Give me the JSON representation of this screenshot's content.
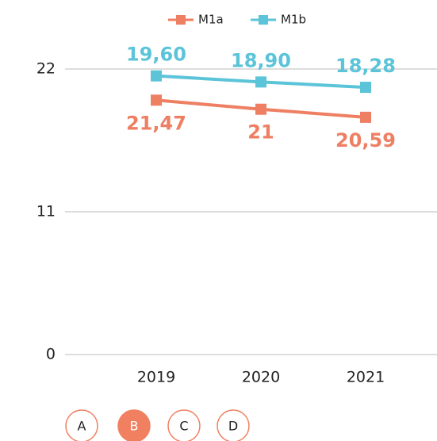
{
  "chart_data": {
    "type": "line",
    "categories": [
      "2019",
      "2020",
      "2021"
    ],
    "series": [
      {
        "name": "M1a",
        "color": "#ee7f63",
        "values": [
          19.6,
          18.9,
          18.28
        ],
        "value_labels": [
          "19,60",
          "18,90",
          "18,28"
        ]
      },
      {
        "name": "M1b",
        "color": "#5bc4d8",
        "values": [
          21.47,
          21,
          20.59
        ],
        "value_labels": [
          "21,47",
          "21",
          "20,59"
        ]
      }
    ],
    "ylim": [
      0,
      22
    ],
    "yticks": [
      0,
      11,
      22
    ],
    "grid": true,
    "legend": "top",
    "buttons": [
      "A",
      "B",
      "C",
      "D"
    ],
    "selected_button": 1
  }
}
